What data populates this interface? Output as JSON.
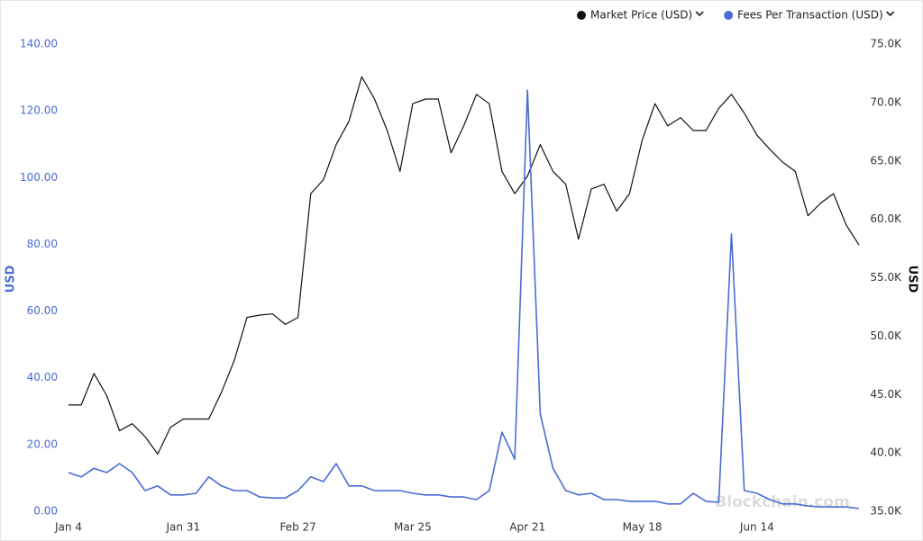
{
  "chart_data": {
    "type": "line",
    "legend_position": "top-right",
    "grid": false,
    "categories": [
      "Jan 4",
      null,
      null,
      null,
      null,
      null,
      null,
      null,
      null,
      "Jan 31",
      null,
      null,
      null,
      null,
      null,
      null,
      null,
      null,
      "Feb 27",
      null,
      null,
      null,
      null,
      null,
      null,
      null,
      null,
      "Mar 25",
      null,
      null,
      null,
      null,
      null,
      null,
      null,
      null,
      "Apr 21",
      null,
      null,
      null,
      null,
      null,
      null,
      null,
      null,
      "May 18",
      null,
      null,
      null,
      null,
      null,
      null,
      null,
      null,
      "Jun 14",
      null,
      null,
      null,
      null,
      null,
      null,
      null,
      null
    ],
    "ylabel": "USD",
    "y2label": "USD",
    "ylim": [
      0,
      140
    ],
    "yticks": [
      {
        "value": 0,
        "label": "0.00"
      },
      {
        "value": 20,
        "label": "20.00"
      },
      {
        "value": 40,
        "label": "40.00"
      },
      {
        "value": 60,
        "label": "60.00"
      },
      {
        "value": 80,
        "label": "80.00"
      },
      {
        "value": 100,
        "label": "100.00"
      },
      {
        "value": 120,
        "label": "120.00"
      },
      {
        "value": 140,
        "label": "140.00"
      }
    ],
    "y2lim": [
      35000,
      75000
    ],
    "y2ticks": [
      {
        "value": 35000,
        "label": "35.0K"
      },
      {
        "value": 40000,
        "label": "40.0K"
      },
      {
        "value": 45000,
        "label": "45.0K"
      },
      {
        "value": 50000,
        "label": "50.0K"
      },
      {
        "value": 55000,
        "label": "55.0K"
      },
      {
        "value": 60000,
        "label": "60.0K"
      },
      {
        "value": 65000,
        "label": "65.0K"
      },
      {
        "value": 70000,
        "label": "70.0K"
      },
      {
        "value": 75000,
        "label": "75.0K"
      }
    ],
    "series": [
      {
        "name": "Market Price (USD)",
        "color": "#111111",
        "axis": "y2",
        "values": [
          44100,
          44100,
          46800,
          44900,
          41900,
          42500,
          41400,
          39900,
          42200,
          42900,
          42900,
          42900,
          45200,
          47900,
          51600,
          51800,
          51900,
          51000,
          51600,
          62200,
          63400,
          66400,
          68400,
          72200,
          70300,
          67600,
          64100,
          69900,
          70300,
          70300,
          65700,
          68000,
          70700,
          69900,
          64100,
          62200,
          63700,
          66400,
          64100,
          63000,
          58300,
          62600,
          63000,
          60700,
          62200,
          66800,
          69900,
          68000,
          68700,
          67600,
          67600,
          69500,
          70700,
          69100,
          67200,
          66000,
          64900,
          64100,
          60300,
          61400,
          62200,
          59500,
          57800
        ]
      },
      {
        "name": "Fees Per Transaction (USD)",
        "color": "#4a6cd4",
        "axis": "y",
        "values": [
          11.6,
          10.3,
          12.9,
          11.6,
          14.3,
          11.6,
          6.2,
          7.6,
          4.9,
          4.9,
          5.4,
          10.3,
          7.6,
          6.2,
          6.2,
          4.3,
          4.0,
          4.0,
          6.2,
          10.3,
          8.9,
          14.3,
          7.6,
          7.6,
          6.2,
          6.2,
          6.2,
          5.4,
          4.9,
          4.9,
          4.3,
          4.3,
          3.5,
          6.2,
          23.7,
          15.6,
          126.2,
          29.1,
          12.9,
          6.2,
          4.9,
          5.4,
          3.5,
          3.5,
          3.0,
          3.0,
          3.0,
          2.2,
          2.2,
          5.4,
          3.0,
          2.7,
          83.1,
          6.2,
          5.4,
          3.5,
          2.2,
          2.2,
          1.6,
          1.3,
          1.3,
          1.3,
          0.8
        ]
      }
    ],
    "watermark": "Blockchain.com"
  }
}
